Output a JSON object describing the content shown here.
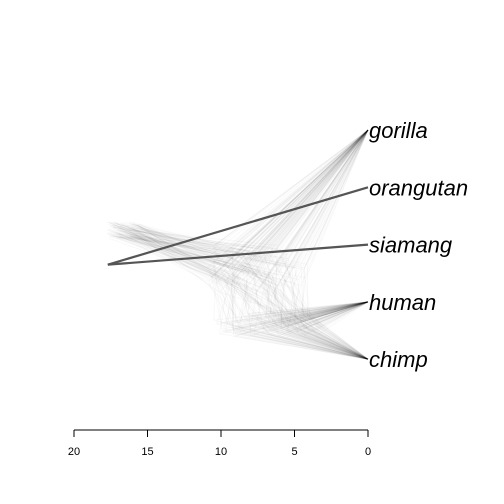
{
  "chart_data": {
    "type": "densitree",
    "title": "",
    "xlabel": "",
    "ylabel": "",
    "taxa": [
      "gorilla",
      "orangutan",
      "siamang",
      "human",
      "chimp"
    ],
    "x_axis": {
      "ticks": [
        20,
        15,
        10,
        5,
        0
      ],
      "tick_labels": [
        "20",
        "15",
        "10",
        "5",
        "0"
      ],
      "range": [
        20,
        0
      ],
      "reversed": true
    },
    "consensus_tree": {
      "root_age": 17.7,
      "branches": [
        {
          "from_age": 17.7,
          "from_pos": 2.35,
          "to_age": 0,
          "to_taxon": "orangutan"
        },
        {
          "from_age": 17.7,
          "from_pos": 2.35,
          "to_age": 0,
          "to_taxon": "siamang"
        }
      ]
    },
    "posterior_sample_ages": {
      "root_age_range": [
        15.5,
        17.8
      ],
      "gorilla_split_age_range": [
        4,
        11
      ],
      "human_chimp_split_age_range": [
        3.5,
        11
      ]
    }
  }
}
